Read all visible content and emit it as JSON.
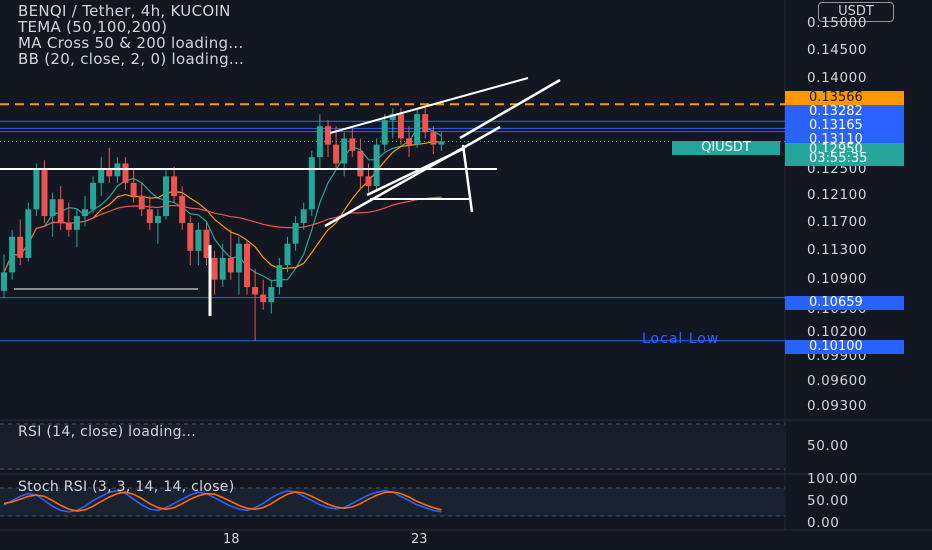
{
  "header": {
    "symbol_line": "BENQI / Tether, 4h, KUCOIN",
    "indicators": [
      "TEMA (50,100,200)",
      "MA Cross 50 & 200 loading...",
      "BB (20, close, 2, 0) loading..."
    ]
  },
  "currency_button": "USDT",
  "price_axis": {
    "ticks": [
      "0.15000",
      "0.14500",
      "0.14000",
      "0.12500",
      "0.12100",
      "0.11700",
      "0.11300",
      "0.10900",
      "0.10500",
      "0.10200",
      "0.09900",
      "0.09600",
      "0.09300"
    ],
    "price_tags": [
      {
        "label": "0.13566",
        "color": "#ff9800",
        "text_color": "#131722"
      },
      {
        "label": "0.13282",
        "color": "#2962ff",
        "text_color": "#ffffff"
      },
      {
        "label": "0.13165",
        "color": "#2962ff",
        "text_color": "#ffffff"
      },
      {
        "label": "0.13110",
        "color": "#2962ff",
        "text_color": "#ffffff"
      },
      {
        "label": "0.12950",
        "color": "#26a69a",
        "text_color": "#ffffff"
      },
      {
        "label": "03:55:35",
        "color": "#26a69a",
        "text_color": "#ffffff"
      },
      {
        "label": "0.10659",
        "color": "#2962ff",
        "text_color": "#ffffff"
      },
      {
        "label": "0.10100",
        "color": "#2962ff",
        "text_color": "#ffffff"
      }
    ],
    "symbol_tag": "QIUSDT"
  },
  "annotations": {
    "local_low": "Local Low"
  },
  "rsi_panel": {
    "title": "RSI (14, close) loading...",
    "ticks": [
      "50.00"
    ]
  },
  "stoch_panel": {
    "title": "Stoch RSI (3, 3, 14, 14, close)",
    "ticks": [
      "100.00",
      "50.00",
      "0.00"
    ],
    "colors": {
      "k": "#2962ff",
      "d": "#ff6d00"
    }
  },
  "time_axis": {
    "ticks": [
      "18",
      "23"
    ]
  },
  "colors": {
    "up": "#26a69a",
    "down": "#ef5350",
    "background": "#131722"
  },
  "chart_data": {
    "type": "candlestick",
    "symbol": "BENQI / Tether",
    "interval": "4h",
    "exchange": "KUCOIN",
    "last_price": 0.1295,
    "countdown": "03:55:35",
    "y_range": [
      0.0915,
      0.1545
    ],
    "horizontal_levels": [
      {
        "price": 0.13566,
        "style": "dashed",
        "color": "#ff9800"
      },
      {
        "price": 0.13282,
        "color": "#2962ff"
      },
      {
        "price": 0.13165,
        "color": "#2962ff"
      },
      {
        "price": 0.1311,
        "color": "#2962ff"
      },
      {
        "price": 0.10659,
        "color": "#2962ff"
      },
      {
        "price": 0.101,
        "color": "#2962ff",
        "label": "Local Low"
      }
    ],
    "candles": [
      {
        "o": 0.1075,
        "h": 0.1125,
        "l": 0.1065,
        "c": 0.11
      },
      {
        "o": 0.11,
        "h": 0.116,
        "l": 0.109,
        "c": 0.115
      },
      {
        "o": 0.115,
        "h": 0.1175,
        "l": 0.111,
        "c": 0.112
      },
      {
        "o": 0.112,
        "h": 0.12,
        "l": 0.1115,
        "c": 0.119
      },
      {
        "o": 0.119,
        "h": 0.126,
        "l": 0.118,
        "c": 0.125
      },
      {
        "o": 0.125,
        "h": 0.1265,
        "l": 0.117,
        "c": 0.118
      },
      {
        "o": 0.118,
        "h": 0.1215,
        "l": 0.115,
        "c": 0.1205
      },
      {
        "o": 0.1205,
        "h": 0.1225,
        "l": 0.116,
        "c": 0.117
      },
      {
        "o": 0.117,
        "h": 0.12,
        "l": 0.115,
        "c": 0.116
      },
      {
        "o": 0.116,
        "h": 0.119,
        "l": 0.1135,
        "c": 0.118
      },
      {
        "o": 0.118,
        "h": 0.121,
        "l": 0.1165,
        "c": 0.119
      },
      {
        "o": 0.119,
        "h": 0.124,
        "l": 0.1185,
        "c": 0.123
      },
      {
        "o": 0.123,
        "h": 0.127,
        "l": 0.121,
        "c": 0.125
      },
      {
        "o": 0.125,
        "h": 0.1285,
        "l": 0.123,
        "c": 0.124
      },
      {
        "o": 0.124,
        "h": 0.127,
        "l": 0.123,
        "c": 0.126
      },
      {
        "o": 0.126,
        "h": 0.127,
        "l": 0.122,
        "c": 0.123
      },
      {
        "o": 0.123,
        "h": 0.125,
        "l": 0.12,
        "c": 0.121
      },
      {
        "o": 0.121,
        "h": 0.123,
        "l": 0.118,
        "c": 0.119
      },
      {
        "o": 0.119,
        "h": 0.121,
        "l": 0.116,
        "c": 0.117
      },
      {
        "o": 0.117,
        "h": 0.119,
        "l": 0.114,
        "c": 0.118
      },
      {
        "o": 0.118,
        "h": 0.125,
        "l": 0.1175,
        "c": 0.124
      },
      {
        "o": 0.124,
        "h": 0.1255,
        "l": 0.12,
        "c": 0.121
      },
      {
        "o": 0.121,
        "h": 0.1225,
        "l": 0.116,
        "c": 0.117
      },
      {
        "o": 0.117,
        "h": 0.118,
        "l": 0.111,
        "c": 0.113
      },
      {
        "o": 0.113,
        "h": 0.117,
        "l": 0.111,
        "c": 0.116
      },
      {
        "o": 0.116,
        "h": 0.117,
        "l": 0.111,
        "c": 0.112
      },
      {
        "o": 0.112,
        "h": 0.113,
        "l": 0.107,
        "c": 0.109
      },
      {
        "o": 0.109,
        "h": 0.114,
        "l": 0.108,
        "c": 0.112
      },
      {
        "o": 0.112,
        "h": 0.116,
        "l": 0.109,
        "c": 0.11
      },
      {
        "o": 0.11,
        "h": 0.115,
        "l": 0.107,
        "c": 0.114
      },
      {
        "o": 0.114,
        "h": 0.1145,
        "l": 0.107,
        "c": 0.108
      },
      {
        "o": 0.108,
        "h": 0.1105,
        "l": 0.101,
        "c": 0.107
      },
      {
        "o": 0.107,
        "h": 0.109,
        "l": 0.105,
        "c": 0.106
      },
      {
        "o": 0.106,
        "h": 0.109,
        "l": 0.1045,
        "c": 0.108
      },
      {
        "o": 0.108,
        "h": 0.112,
        "l": 0.107,
        "c": 0.111
      },
      {
        "o": 0.111,
        "h": 0.115,
        "l": 0.11,
        "c": 0.114
      },
      {
        "o": 0.114,
        "h": 0.118,
        "l": 0.113,
        "c": 0.117
      },
      {
        "o": 0.117,
        "h": 0.12,
        "l": 0.116,
        "c": 0.119
      },
      {
        "o": 0.119,
        "h": 0.128,
        "l": 0.118,
        "c": 0.127
      },
      {
        "o": 0.127,
        "h": 0.134,
        "l": 0.125,
        "c": 0.132
      },
      {
        "o": 0.132,
        "h": 0.133,
        "l": 0.127,
        "c": 0.129
      },
      {
        "o": 0.129,
        "h": 0.132,
        "l": 0.125,
        "c": 0.126
      },
      {
        "o": 0.126,
        "h": 0.131,
        "l": 0.124,
        "c": 0.13
      },
      {
        "o": 0.13,
        "h": 0.132,
        "l": 0.127,
        "c": 0.128
      },
      {
        "o": 0.128,
        "h": 0.13,
        "l": 0.122,
        "c": 0.124
      },
      {
        "o": 0.124,
        "h": 0.126,
        "l": 0.1215,
        "c": 0.1225
      },
      {
        "o": 0.1225,
        "h": 0.13,
        "l": 0.122,
        "c": 0.129
      },
      {
        "o": 0.129,
        "h": 0.134,
        "l": 0.128,
        "c": 0.133
      },
      {
        "o": 0.133,
        "h": 0.135,
        "l": 0.13,
        "c": 0.134
      },
      {
        "o": 0.134,
        "h": 0.135,
        "l": 0.129,
        "c": 0.13
      },
      {
        "o": 0.13,
        "h": 0.132,
        "l": 0.127,
        "c": 0.129
      },
      {
        "o": 0.129,
        "h": 0.135,
        "l": 0.1285,
        "c": 0.134
      },
      {
        "o": 0.134,
        "h": 0.1358,
        "l": 0.13,
        "c": 0.131
      },
      {
        "o": 0.131,
        "h": 0.132,
        "l": 0.1275,
        "c": 0.129
      },
      {
        "o": 0.129,
        "h": 0.131,
        "l": 0.128,
        "c": 0.1295
      }
    ],
    "stoch_k": [
      40,
      55,
      70,
      80,
      75,
      55,
      35,
      20,
      15,
      20,
      35,
      55,
      70,
      85,
      90,
      80,
      60,
      40,
      25,
      20,
      30,
      45,
      60,
      75,
      85,
      80,
      65,
      50,
      35,
      25,
      20,
      30,
      45,
      65,
      80,
      90,
      85,
      70,
      55,
      40,
      30,
      25,
      30,
      45,
      60,
      75,
      85,
      90,
      85,
      70,
      55,
      40,
      30,
      20,
      15
    ],
    "stoch_d": [
      45,
      50,
      60,
      70,
      75,
      70,
      55,
      38,
      25,
      18,
      22,
      35,
      52,
      68,
      80,
      85,
      78,
      62,
      44,
      30,
      24,
      30,
      44,
      60,
      72,
      80,
      78,
      66,
      52,
      38,
      28,
      24,
      30,
      44,
      62,
      78,
      86,
      82,
      70,
      56,
      42,
      32,
      28,
      32,
      44,
      60,
      74,
      84,
      86,
      80,
      68,
      52,
      40,
      30,
      22
    ]
  }
}
